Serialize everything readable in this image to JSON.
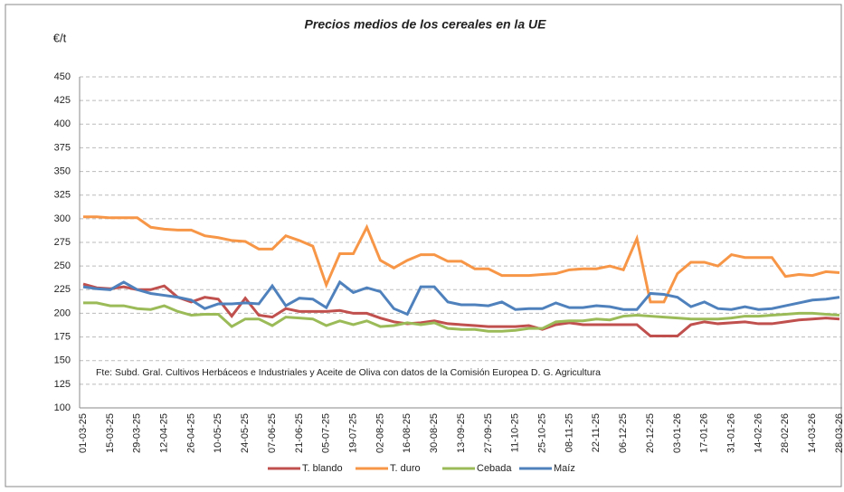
{
  "chart_data": {
    "type": "line",
    "title": "Precios medios de los cereales en la UE",
    "y_label": "€/t",
    "annotation": "Fte: Subd. Gral. Cultivos Herbáceos e Industriales y Aceite de Oliva con datos de la Comisión Europea D. G. Agricultura",
    "categories": [
      "01-03-25",
      null,
      "15-03-25",
      null,
      "29-03-25",
      null,
      "12-04-25",
      null,
      "26-04-25",
      null,
      "10-05-25",
      null,
      "24-05-25",
      null,
      "07-06-25",
      null,
      "21-06-25",
      null,
      "05-07-25",
      null,
      "19-07-25",
      null,
      "02-08-25",
      null,
      "16-08-25",
      null,
      "30-08-25",
      null,
      "13-09-25",
      null,
      "27-09-25",
      null,
      "11-10-25",
      null,
      "25-10-25",
      null,
      "08-11-25",
      null,
      "22-11-25",
      null,
      "06-12-25",
      null,
      "20-12-25",
      null,
      "03-01-26",
      null,
      "17-01-26",
      null,
      "31-01-26",
      null,
      "14-02-26",
      null,
      "28-02-26",
      null,
      "14-03-26",
      null,
      "28-03-26"
    ],
    "series": [
      {
        "name": "T. blando",
        "color": "#c0504d",
        "values": [
          231,
          227,
          226,
          228,
          225,
          225,
          229,
          217,
          212,
          217,
          215,
          197,
          216,
          198,
          196,
          205,
          202,
          202,
          202,
          203,
          200,
          200,
          195,
          191,
          189,
          190,
          192,
          189,
          188,
          187,
          186,
          186,
          186,
          187,
          183,
          188,
          190,
          188,
          188,
          188,
          188,
          188,
          176,
          176,
          176,
          188,
          191,
          189,
          190,
          191,
          189,
          189,
          191,
          193,
          194,
          195,
          194
        ]
      },
      {
        "name": "T. duro",
        "color": "#f79646",
        "values": [
          302,
          302,
          301,
          301,
          301,
          291,
          289,
          288,
          288,
          282,
          280,
          277,
          276,
          268,
          268,
          282,
          277,
          271,
          230,
          263,
          263,
          291,
          256,
          248,
          256,
          262,
          262,
          255,
          255,
          247,
          247,
          240,
          240,
          240,
          241,
          242,
          246,
          247,
          247,
          250,
          246,
          279,
          212,
          212,
          242,
          254,
          254,
          250,
          262,
          259,
          259,
          259,
          239,
          241,
          240,
          244,
          243
        ]
      },
      {
        "name": "Cebada",
        "color": "#9bbb59",
        "values": [
          211,
          211,
          208,
          208,
          205,
          204,
          208,
          202,
          198,
          199,
          199,
          186,
          194,
          194,
          187,
          196,
          195,
          194,
          187,
          192,
          188,
          192,
          186,
          187,
          190,
          188,
          190,
          184,
          183,
          183,
          181,
          181,
          182,
          184,
          184,
          191,
          192,
          192,
          194,
          193,
          197,
          198,
          197,
          196,
          195,
          194,
          194,
          194,
          195,
          197,
          197,
          198,
          199,
          200,
          200,
          199,
          198
        ]
      },
      {
        "name": "Maíz",
        "color": "#4f81bd",
        "values": [
          228,
          226,
          225,
          233,
          225,
          221,
          219,
          217,
          214,
          205,
          210,
          210,
          211,
          210,
          229,
          208,
          216,
          215,
          206,
          233,
          222,
          227,
          223,
          205,
          199,
          228,
          228,
          212,
          209,
          209,
          208,
          212,
          204,
          205,
          205,
          211,
          206,
          206,
          208,
          207,
          204,
          204,
          221,
          220,
          217,
          207,
          212,
          205,
          204,
          207,
          204,
          205,
          208,
          211,
          214,
          215,
          217
        ]
      }
    ],
    "ylim": [
      100,
      450
    ],
    "yticks": [
      100,
      125,
      150,
      175,
      200,
      225,
      250,
      275,
      300,
      325,
      350,
      375,
      400,
      425,
      450
    ],
    "grid": true
  }
}
